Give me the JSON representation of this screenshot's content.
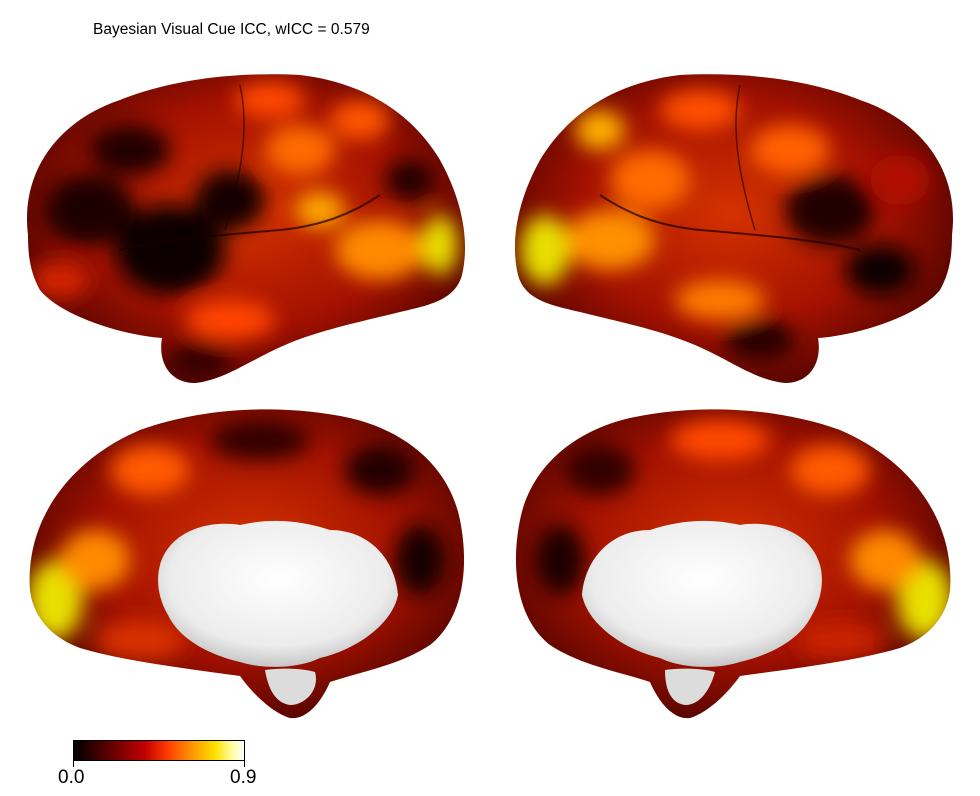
{
  "figure": {
    "title": "Bayesian Visual Cue ICC, wICC = 0.579"
  },
  "colorbar": {
    "min_label": "0.0",
    "max_label": "0.9",
    "colormap": "hot",
    "colors": [
      "#000000",
      "#c30000",
      "#ff3c00",
      "#ff9a00",
      "#ffe000",
      "#ffffff"
    ]
  },
  "panels": [
    {
      "view": "left-lateral"
    },
    {
      "view": "right-lateral"
    },
    {
      "view": "left-medial"
    },
    {
      "view": "right-medial"
    }
  ]
}
